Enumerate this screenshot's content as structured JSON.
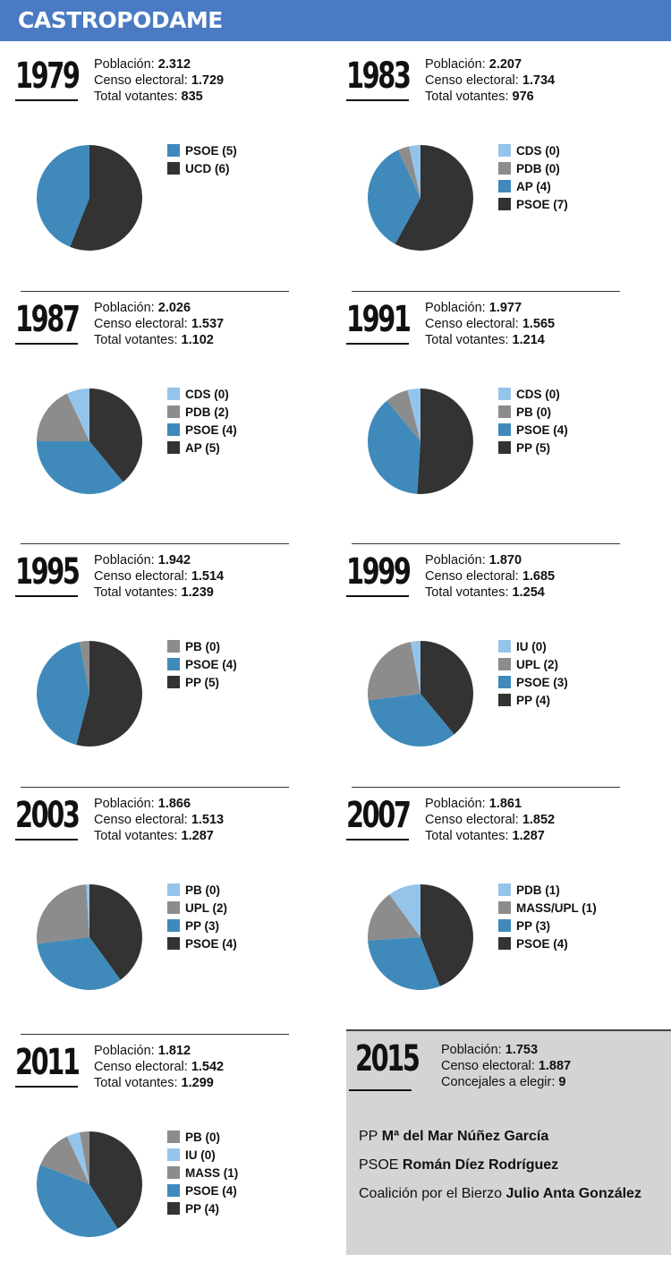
{
  "title": "CASTROPODAME",
  "labels": {
    "poblacion": "Población:",
    "censo": "Censo electoral:",
    "votantes": "Total votantes:",
    "concejales": "Concejales a elegir:"
  },
  "colors": {
    "dark": "#333333",
    "mid_blue": "#3f8abb",
    "gray": "#8c8c8c",
    "light_blue": "#95c4ea"
  },
  "chart_data": [
    {
      "type": "pie",
      "year": "1979",
      "poblacion": "2.312",
      "censo": "1.729",
      "votantes": "835",
      "legend": [
        {
          "label": "PSOE (5)",
          "color": "mid_blue"
        },
        {
          "label": "UCD (6)",
          "color": "dark"
        }
      ],
      "slices": [
        {
          "label": "UCD (6)",
          "value": 56,
          "color": "dark"
        },
        {
          "label": "PSOE (5)",
          "value": 44,
          "color": "mid_blue"
        }
      ]
    },
    {
      "type": "pie",
      "year": "1983",
      "poblacion": "2.207",
      "censo": "1.734",
      "votantes": "976",
      "legend": [
        {
          "label": "CDS (0)",
          "color": "light_blue"
        },
        {
          "label": "PDB (0)",
          "color": "gray"
        },
        {
          "label": "AP (4)",
          "color": "mid_blue"
        },
        {
          "label": "PSOE (7)",
          "color": "dark"
        }
      ],
      "slices": [
        {
          "label": "PSOE (7)",
          "value": 58,
          "color": "dark"
        },
        {
          "label": "AP (4)",
          "value": 35,
          "color": "mid_blue"
        },
        {
          "label": "PDB (0)",
          "value": 3.5,
          "color": "gray"
        },
        {
          "label": "CDS (0)",
          "value": 3.5,
          "color": "light_blue"
        }
      ]
    },
    {
      "type": "pie",
      "year": "1987",
      "poblacion": "2.026",
      "censo": "1.537",
      "votantes": "1.102",
      "legend": [
        {
          "label": "CDS (0)",
          "color": "light_blue"
        },
        {
          "label": "PDB (2)",
          "color": "gray"
        },
        {
          "label": "PSOE (4)",
          "color": "mid_blue"
        },
        {
          "label": "AP (5)",
          "color": "dark"
        }
      ],
      "slices": [
        {
          "label": "AP (5)",
          "value": 39,
          "color": "dark"
        },
        {
          "label": "PSOE (4)",
          "value": 36,
          "color": "mid_blue"
        },
        {
          "label": "PDB (2)",
          "value": 18,
          "color": "gray"
        },
        {
          "label": "CDS (0)",
          "value": 7,
          "color": "light_blue"
        }
      ]
    },
    {
      "type": "pie",
      "year": "1991",
      "poblacion": "1.977",
      "censo": "1.565",
      "votantes": "1.214",
      "legend": [
        {
          "label": "CDS (0)",
          "color": "light_blue"
        },
        {
          "label": "PB (0)",
          "color": "gray"
        },
        {
          "label": "PSOE (4)",
          "color": "mid_blue"
        },
        {
          "label": "PP (5)",
          "color": "dark"
        }
      ],
      "slices": [
        {
          "label": "PP (5)",
          "value": 51,
          "color": "dark"
        },
        {
          "label": "PSOE (4)",
          "value": 38,
          "color": "mid_blue"
        },
        {
          "label": "PB (0)",
          "value": 7,
          "color": "gray"
        },
        {
          "label": "CDS (0)",
          "value": 4,
          "color": "light_blue"
        }
      ]
    },
    {
      "type": "pie",
      "year": "1995",
      "poblacion": "1.942",
      "censo": "1.514",
      "votantes": "1.239",
      "legend": [
        {
          "label": "PB (0)",
          "color": "gray"
        },
        {
          "label": "PSOE (4)",
          "color": "mid_blue"
        },
        {
          "label": "PP (5)",
          "color": "dark"
        }
      ],
      "slices": [
        {
          "label": "PP (5)",
          "value": 54,
          "color": "dark"
        },
        {
          "label": "PSOE (4)",
          "value": 43,
          "color": "mid_blue"
        },
        {
          "label": "PB (0)",
          "value": 3,
          "color": "gray"
        }
      ]
    },
    {
      "type": "pie",
      "year": "1999",
      "poblacion": "1.870",
      "censo": "1.685",
      "votantes": "1.254",
      "legend": [
        {
          "label": "IU (0)",
          "color": "light_blue"
        },
        {
          "label": "UPL (2)",
          "color": "gray"
        },
        {
          "label": "PSOE (3)",
          "color": "mid_blue"
        },
        {
          "label": "PP (4)",
          "color": "dark"
        }
      ],
      "slices": [
        {
          "label": "PP (4)",
          "value": 39,
          "color": "dark"
        },
        {
          "label": "PSOE (3)",
          "value": 34,
          "color": "mid_blue"
        },
        {
          "label": "UPL (2)",
          "value": 24,
          "color": "gray"
        },
        {
          "label": "IU (0)",
          "value": 3,
          "color": "light_blue"
        }
      ]
    },
    {
      "type": "pie",
      "year": "2003",
      "poblacion": "1.866",
      "censo": "1.513",
      "votantes": "1.287",
      "legend": [
        {
          "label": "PB (0)",
          "color": "light_blue"
        },
        {
          "label": "UPL (2)",
          "color": "gray"
        },
        {
          "label": "PP (3)",
          "color": "mid_blue"
        },
        {
          "label": "PSOE (4)",
          "color": "dark"
        }
      ],
      "slices": [
        {
          "label": "PSOE (4)",
          "value": 40,
          "color": "dark"
        },
        {
          "label": "PP (3)",
          "value": 33,
          "color": "mid_blue"
        },
        {
          "label": "UPL (2)",
          "value": 26,
          "color": "gray"
        },
        {
          "label": "PB (0)",
          "value": 1,
          "color": "light_blue"
        }
      ]
    },
    {
      "type": "pie",
      "year": "2007",
      "poblacion": "1.861",
      "censo": "1.852",
      "votantes": "1.287",
      "legend": [
        {
          "label": "PDB (1)",
          "color": "light_blue"
        },
        {
          "label": "MASS/UPL (1)",
          "color": "gray"
        },
        {
          "label": "PP (3)",
          "color": "mid_blue"
        },
        {
          "label": "PSOE (4)",
          "color": "dark"
        }
      ],
      "slices": [
        {
          "label": "PSOE (4)",
          "value": 44,
          "color": "dark"
        },
        {
          "label": "PP (3)",
          "value": 30,
          "color": "mid_blue"
        },
        {
          "label": "MASS/UPL (1)",
          "value": 16,
          "color": "gray"
        },
        {
          "label": "PDB (1)",
          "value": 10,
          "color": "light_blue"
        }
      ]
    },
    {
      "type": "pie",
      "year": "2011",
      "poblacion": "1.812",
      "censo": "1.542",
      "votantes": "1.299",
      "legend": [
        {
          "label": "PB (0)",
          "color": "gray"
        },
        {
          "label": "IU (0)",
          "color": "light_blue"
        },
        {
          "label": "MASS (1)",
          "color": "gray"
        },
        {
          "label": "PSOE (4)",
          "color": "mid_blue"
        },
        {
          "label": "PP (4)",
          "color": "dark"
        }
      ],
      "slices": [
        {
          "label": "PP (4)",
          "value": 41,
          "color": "dark"
        },
        {
          "label": "PSOE (4)",
          "value": 40,
          "color": "mid_blue"
        },
        {
          "label": "MASS (1)",
          "value": 12,
          "color": "gray"
        },
        {
          "label": "IU (0)",
          "value": 4,
          "color": "light_blue"
        },
        {
          "label": "PB (0)",
          "value": 3,
          "color": "gray"
        }
      ]
    }
  ],
  "y2015": {
    "year": "2015",
    "poblacion": "1.753",
    "censo": "1.887",
    "concejales": "9",
    "candidates": [
      {
        "party": "PP",
        "name": "Mª del Mar Núñez García"
      },
      {
        "party": "PSOE",
        "name": "Román Díez Rodríguez"
      },
      {
        "party": "Coalición por el Bierzo",
        "name": "Julio Anta González"
      }
    ]
  }
}
